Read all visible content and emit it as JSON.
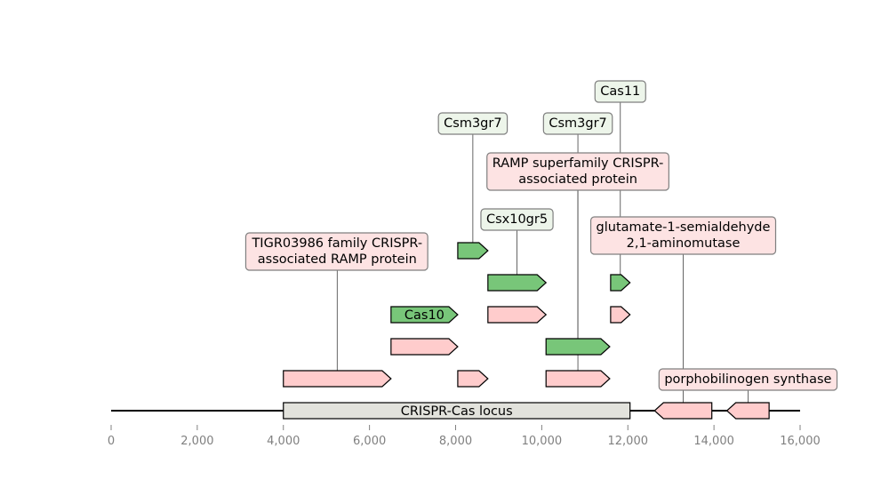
{
  "axis": {
    "min": 0,
    "max": 16000,
    "ticks": [
      {
        "value": 0,
        "label": "0"
      },
      {
        "value": 2000,
        "label": "2,000"
      },
      {
        "value": 4000,
        "label": "4,000"
      },
      {
        "value": 6000,
        "label": "6,000"
      },
      {
        "value": 8000,
        "label": "8,000"
      },
      {
        "value": 10000,
        "label": "10,000"
      },
      {
        "value": 12000,
        "label": "12,000"
      },
      {
        "value": 14000,
        "label": "14,000"
      },
      {
        "value": 16000,
        "label": "16,000"
      }
    ]
  },
  "colors": {
    "green": "#78c679",
    "pink": "#ffcccc",
    "locus": "#e2e2dc",
    "label_green_bg": "#edf5ea",
    "label_pink_bg": "#fde3e3",
    "tick_text": "#808080"
  },
  "locus": {
    "start": 4000,
    "end": 12050,
    "label": "CRISPR-Cas locus"
  },
  "features": [
    {
      "start": 4000,
      "end": 6500,
      "strand": 1,
      "level": 1,
      "color": "pink",
      "label": "TIGR03986 family CRISPR-\nassociated RAMP protein",
      "label_mode": "callout",
      "label_level": 5
    },
    {
      "start": 6500,
      "end": 8050,
      "strand": 1,
      "level": 2,
      "color": "pink",
      "label": "",
      "label_mode": "none"
    },
    {
      "start": 6500,
      "end": 8050,
      "strand": 1,
      "level": 3,
      "color": "green",
      "label": "Cas10",
      "label_mode": "inline"
    },
    {
      "start": 8050,
      "end": 8750,
      "strand": 1,
      "level": 1,
      "color": "pink",
      "label": "",
      "label_mode": "none"
    },
    {
      "start": 8050,
      "end": 8750,
      "strand": 1,
      "level": 5,
      "color": "green",
      "label": "Csm3gr7",
      "label_mode": "callout",
      "label_level": 9
    },
    {
      "start": 8750,
      "end": 10100,
      "strand": 1,
      "level": 3,
      "color": "pink",
      "label": "",
      "label_mode": "none"
    },
    {
      "start": 8750,
      "end": 10100,
      "strand": 1,
      "level": 4,
      "color": "green",
      "label": "Csx10gr5",
      "label_mode": "callout",
      "label_level": 6
    },
    {
      "start": 10100,
      "end": 11580,
      "strand": 1,
      "level": 1,
      "color": "pink",
      "label": "RAMP superfamily CRISPR-\nassociated protein",
      "label_mode": "callout",
      "label_level": 7.5
    },
    {
      "start": 10100,
      "end": 11580,
      "strand": 1,
      "level": 2,
      "color": "green",
      "label": "Csm3gr7",
      "label_mode": "callout",
      "label_level": 9
    },
    {
      "start": 11600,
      "end": 12050,
      "strand": 1,
      "level": 3,
      "color": "pink",
      "label": "",
      "label_mode": "none"
    },
    {
      "start": 11600,
      "end": 12050,
      "strand": 1,
      "level": 4,
      "color": "green",
      "label": "Cas11",
      "label_mode": "callout",
      "label_level": 10
    },
    {
      "start": 12620,
      "end": 13950,
      "strand": -1,
      "level": 0,
      "color": "pink",
      "label": "glutamate-1-semialdehyde\n2,1-aminomutase",
      "label_mode": "callout",
      "label_level": 5.5
    },
    {
      "start": 14300,
      "end": 15280,
      "strand": -1,
      "level": 0,
      "color": "pink",
      "label": "porphobilinogen synthase",
      "label_mode": "callout",
      "label_level": 1
    }
  ]
}
